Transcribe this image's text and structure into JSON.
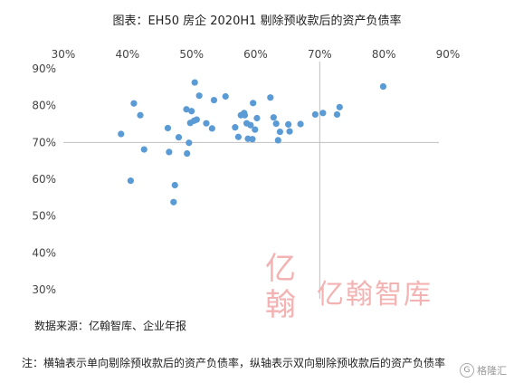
{
  "chart_data": {
    "type": "scatter",
    "title": "图表：EH50 房企 2020H1 剔除预收款后的资产负债率",
    "x_ticks": [
      "30%",
      "40%",
      "50%",
      "60%",
      "70%",
      "80%",
      "90%"
    ],
    "y_ticks": [
      "90%",
      "80%",
      "70%",
      "60%",
      "50%",
      "40%",
      "30%"
    ],
    "xlim": [
      30,
      90
    ],
    "ylim": [
      30,
      90
    ],
    "x_axis_position": "top",
    "crosshair": {
      "x": 70,
      "y": 70
    },
    "point_color": "#5b9bd5",
    "series": [
      {
        "points": [
          {
            "x": 39.0,
            "y": 72.3
          },
          {
            "x": 40.5,
            "y": 59.6
          },
          {
            "x": 41.0,
            "y": 80.6
          },
          {
            "x": 42.0,
            "y": 77.4
          },
          {
            "x": 42.6,
            "y": 68.1
          },
          {
            "x": 46.3,
            "y": 73.9
          },
          {
            "x": 46.5,
            "y": 67.4
          },
          {
            "x": 47.2,
            "y": 53.8
          },
          {
            "x": 47.4,
            "y": 58.4
          },
          {
            "x": 48.0,
            "y": 71.4
          },
          {
            "x": 49.2,
            "y": 79.0
          },
          {
            "x": 49.3,
            "y": 67.0
          },
          {
            "x": 49.6,
            "y": 69.9
          },
          {
            "x": 49.8,
            "y": 75.3
          },
          {
            "x": 50.0,
            "y": 78.5
          },
          {
            "x": 50.4,
            "y": 75.9
          },
          {
            "x": 50.8,
            "y": 76.2
          },
          {
            "x": 50.5,
            "y": 86.3
          },
          {
            "x": 51.2,
            "y": 82.7
          },
          {
            "x": 52.3,
            "y": 75.2
          },
          {
            "x": 53.2,
            "y": 73.8
          },
          {
            "x": 53.5,
            "y": 81.5
          },
          {
            "x": 55.3,
            "y": 82.5
          },
          {
            "x": 56.8,
            "y": 74.1
          },
          {
            "x": 57.3,
            "y": 71.5
          },
          {
            "x": 57.7,
            "y": 77.4
          },
          {
            "x": 58.2,
            "y": 78.0
          },
          {
            "x": 58.3,
            "y": 77.4
          },
          {
            "x": 58.6,
            "y": 75.2
          },
          {
            "x": 58.8,
            "y": 71.0
          },
          {
            "x": 59.2,
            "y": 74.7
          },
          {
            "x": 59.5,
            "y": 70.9
          },
          {
            "x": 59.6,
            "y": 80.7
          },
          {
            "x": 59.9,
            "y": 73.5
          },
          {
            "x": 60.2,
            "y": 76.6
          },
          {
            "x": 62.3,
            "y": 82.2
          },
          {
            "x": 62.8,
            "y": 76.8
          },
          {
            "x": 63.2,
            "y": 75.1
          },
          {
            "x": 63.5,
            "y": 70.6
          },
          {
            "x": 63.8,
            "y": 72.9
          },
          {
            "x": 65.1,
            "y": 74.9
          },
          {
            "x": 65.3,
            "y": 73.0
          },
          {
            "x": 67.0,
            "y": 75.0
          },
          {
            "x": 69.3,
            "y": 77.6
          },
          {
            "x": 70.5,
            "y": 78.0
          },
          {
            "x": 72.7,
            "y": 77.6
          },
          {
            "x": 73.1,
            "y": 79.6
          },
          {
            "x": 79.9,
            "y": 85.2
          }
        ]
      }
    ]
  },
  "source_text": "数据来源：亿翰智库、企业年报",
  "note_text": "注：横轴表示单向剔除预收款后的资产负债率，纵轴表示双向剔除预收款后的资产负债率",
  "watermark": {
    "logo_text": "亿翰智库",
    "seal_text": "亿翰"
  },
  "corner_badge": {
    "text": "格隆汇",
    "icon": "g-circle-icon"
  }
}
